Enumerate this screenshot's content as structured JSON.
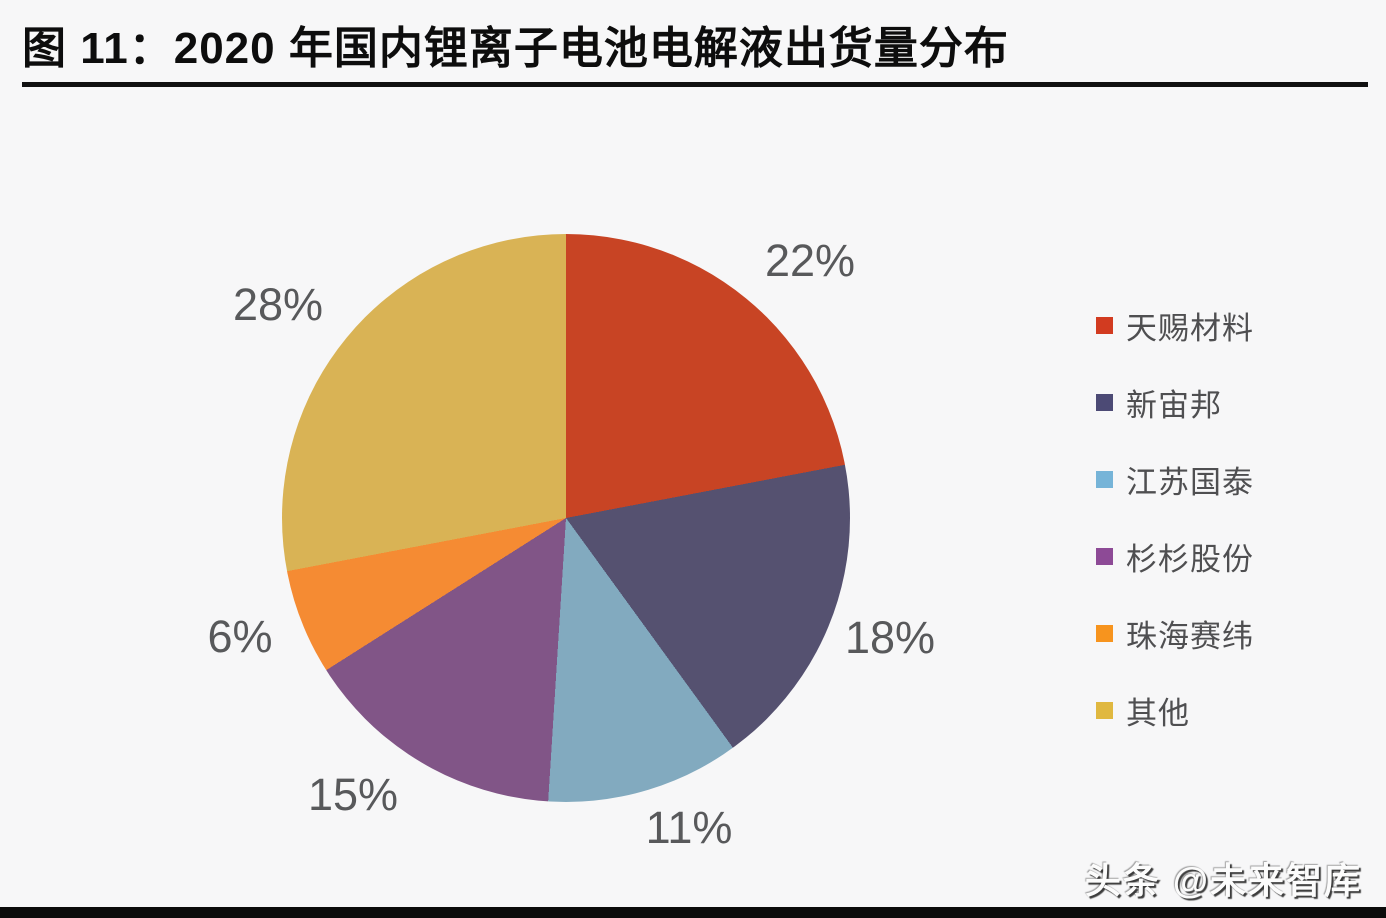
{
  "header": {
    "title": "图 11：2020 年国内锂离子电池电解液出货量分布"
  },
  "chart_data": {
    "type": "pie",
    "title": "2020 年国内锂离子电池电解液出货量分布",
    "categories": [
      "天赐材料",
      "新宙邦",
      "江苏国泰",
      "杉杉股份",
      "珠海赛纬",
      "其他"
    ],
    "values": [
      22,
      18,
      11,
      15,
      6,
      28
    ],
    "labels": [
      "22%",
      "18%",
      "11%",
      "15%",
      "6%",
      "28%"
    ],
    "slice_colors": [
      "#c84424",
      "#555170",
      "#82aabf",
      "#815587",
      "#f58b33",
      "#d9b355"
    ],
    "legend_colors": [
      "#d23b20",
      "#4c4a75",
      "#76b4d8",
      "#8d4a96",
      "#f7941e",
      "#e0b840"
    ],
    "start_angle_deg": 0,
    "direction": "clockwise",
    "legend_position": "right",
    "label_color": "#58595b"
  },
  "watermark": {
    "text": "头条 @未来智库"
  }
}
